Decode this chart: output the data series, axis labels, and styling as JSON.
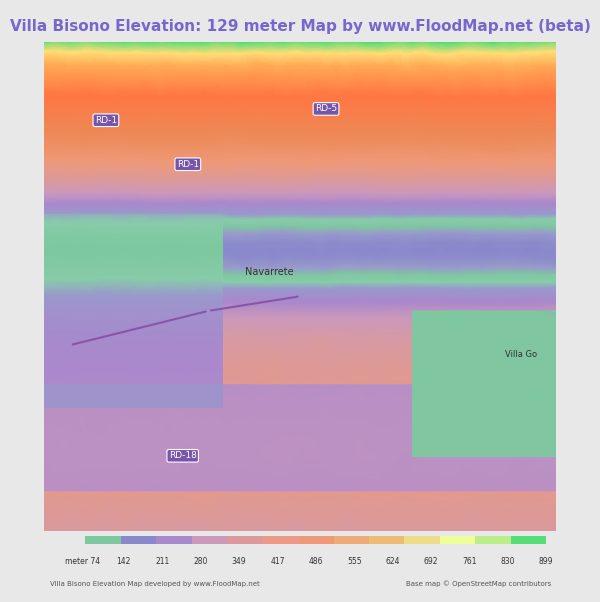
{
  "title": "Villa Bisono Elevation: 129 meter Map by www.FloodMap.net (beta)",
  "title_color": "#7766cc",
  "title_fontsize": 11,
  "title_bg": "#e8e8e8",
  "colorbar_values": [
    74,
    142,
    211,
    280,
    349,
    417,
    486,
    555,
    624,
    692,
    761,
    830,
    899
  ],
  "colorbar_colors": [
    "#7ec8a0",
    "#8888cc",
    "#aa88cc",
    "#cc99bb",
    "#dd99aa",
    "#ee9988",
    "#ee9977",
    "#eeaa77",
    "#eebb77",
    "#eedd88",
    "#eeff99",
    "#bbee88",
    "#55dd77"
  ],
  "footer_left": "Villa Bisono Elevation Map developed by www.FloodMap.net",
  "footer_right": "Base map © OpenStreetMap contributors",
  "map_bg_color": "#9999dd",
  "fig_width": 5.12,
  "fig_height": 5.82
}
